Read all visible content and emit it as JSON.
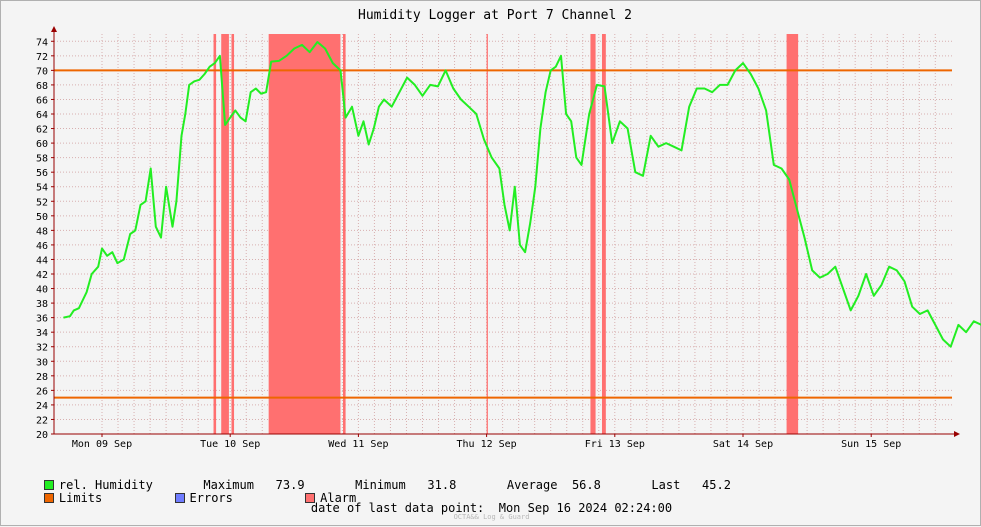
{
  "chart_data": {
    "type": "line",
    "title": "Humidity Logger at Port 7 Channel 2",
    "x_tick_labels": [
      "Mon 09 Sep",
      "Tue 10 Sep",
      "Wed 11 Sep",
      "Thu 12 Sep",
      "Fri 13 Sep",
      "Sat 14 Sep",
      "Sun 15 Sep"
    ],
    "ylim": [
      20,
      75
    ],
    "y_ticks": [
      20,
      22,
      24,
      26,
      28,
      30,
      32,
      34,
      36,
      38,
      40,
      42,
      44,
      46,
      48,
      50,
      52,
      54,
      56,
      58,
      60,
      62,
      64,
      66,
      68,
      70,
      72,
      74
    ],
    "x_range_days": [
      -0.3,
      7.1
    ],
    "grid": true,
    "limits": [
      70,
      25
    ],
    "series": [
      {
        "name": "rel. Humidity",
        "color": "#22ee22",
        "x": [
          -0.3,
          -0.25,
          -0.22,
          -0.18,
          -0.12,
          -0.08,
          -0.03,
          0.0,
          0.04,
          0.08,
          0.12,
          0.17,
          0.22,
          0.26,
          0.3,
          0.34,
          0.38,
          0.42,
          0.46,
          0.5,
          0.55,
          0.58,
          0.62,
          0.65,
          0.68,
          0.72,
          0.76,
          0.8,
          0.84,
          0.88,
          0.92,
          0.96,
          1.0,
          1.04,
          1.08,
          1.12,
          1.16,
          1.2,
          1.24,
          1.28,
          1.32,
          1.38,
          1.44,
          1.5,
          1.56,
          1.62,
          1.68,
          1.74,
          1.8,
          1.86,
          1.9,
          1.95,
          2.0,
          2.04,
          2.08,
          2.12,
          2.16,
          2.2,
          2.26,
          2.32,
          2.38,
          2.44,
          2.5,
          2.56,
          2.62,
          2.68,
          2.74,
          2.8,
          2.86,
          2.92,
          2.98,
          3.04,
          3.1,
          3.14,
          3.18,
          3.22,
          3.26,
          3.3,
          3.34,
          3.38,
          3.42,
          3.46,
          3.5,
          3.54,
          3.58,
          3.62,
          3.66,
          3.7,
          3.74,
          3.8,
          3.86,
          3.92,
          3.98,
          4.04,
          4.1,
          4.16,
          4.22,
          4.28,
          4.34,
          4.4,
          4.46,
          4.52,
          4.58,
          4.64,
          4.7,
          4.76,
          4.82,
          4.88,
          4.94,
          5.0,
          5.06,
          5.12,
          5.18,
          5.24,
          5.3,
          5.36,
          5.42,
          5.48,
          5.54,
          5.6,
          5.66,
          5.72,
          5.78,
          5.84,
          5.9,
          5.96,
          6.02,
          6.08,
          6.14,
          6.2,
          6.26,
          6.32,
          6.38,
          6.44,
          6.5,
          6.56,
          6.62,
          6.68,
          6.74,
          6.8,
          6.86,
          6.92,
          6.98,
          7.04,
          7.1
        ],
        "values": [
          36.0,
          36.2,
          37.0,
          37.3,
          39.5,
          42.0,
          43.0,
          45.5,
          44.5,
          45.0,
          43.5,
          44.0,
          47.5,
          48.0,
          51.5,
          52.0,
          56.5,
          48.5,
          47.0,
          54.0,
          48.5,
          52.0,
          61.0,
          64.0,
          68.0,
          68.5,
          68.7,
          69.5,
          70.5,
          71.0,
          72.0,
          62.5,
          63.5,
          64.5,
          63.5,
          63.0,
          67.0,
          67.5,
          66.8,
          67.0,
          71.2,
          71.3,
          72.0,
          73.0,
          73.5,
          72.5,
          73.9,
          73.0,
          71.0,
          70.0,
          63.5,
          65.0,
          61.0,
          63.0,
          59.8,
          62.0,
          65.0,
          66.0,
          65.0,
          67.0,
          69.0,
          68.0,
          66.5,
          68.0,
          67.8,
          70.0,
          67.5,
          66.0,
          65.0,
          64.0,
          60.5,
          58.0,
          56.5,
          51.5,
          48.0,
          54.0,
          46.0,
          45.0,
          49.0,
          54.0,
          62.0,
          67.0,
          70.0,
          70.5,
          72.0,
          64.0,
          63.0,
          58.0,
          57.0,
          64.0,
          68.0,
          67.8,
          60.0,
          63.0,
          62.0,
          56.0,
          55.5,
          61.0,
          59.5,
          60.0,
          59.5,
          59.0,
          65.0,
          67.5,
          67.5,
          67.0,
          68.0,
          68.0,
          70.0,
          71.0,
          69.5,
          67.5,
          64.5,
          57.0,
          56.5,
          55.0,
          51.0,
          47.0,
          42.5,
          41.5,
          42.0,
          43.0,
          40.0,
          37.0,
          39.0,
          42.0,
          39.0,
          40.5,
          43.0,
          42.5,
          41.0,
          37.5,
          36.5,
          37.0,
          35.0,
          33.0,
          32.0,
          35.0,
          34.0,
          35.5,
          35.0,
          38.0,
          41.0,
          44.0,
          45.0
        ]
      }
    ],
    "limit_color": "#ee6600",
    "alarm_color": "#ff7070",
    "alarm_spans": [
      [
        0.87,
        0.89
      ],
      [
        0.93,
        0.99
      ],
      [
        1.01,
        1.03
      ],
      [
        1.3,
        1.86
      ],
      [
        1.88,
        1.9
      ],
      [
        3.0,
        3.01
      ],
      [
        3.81,
        3.85
      ],
      [
        3.9,
        3.93
      ],
      [
        5.34,
        5.43
      ]
    ]
  },
  "stats": {
    "series_label": "rel. Humidity",
    "max_label": "Maximum",
    "max_value": "73.9",
    "min_label": "Minimum",
    "min_value": "31.8",
    "avg_label": "Average",
    "avg_value": "56.8",
    "last_label": "Last",
    "last_value": "45.2"
  },
  "legend": {
    "limits_label": "Limits",
    "errors_label": "Errors",
    "alarm_label": "Alarm",
    "humidity_color": "#22ee22",
    "limits_color": "#ee6600",
    "errors_color": "#6f7cff",
    "alarm_color": "#ff7070"
  },
  "footer": {
    "last_point_label": "date of last data point:",
    "last_point_value": "Mon Sep 16 2024 02:24:00",
    "credit": "OCTA&& Log & Guard"
  }
}
